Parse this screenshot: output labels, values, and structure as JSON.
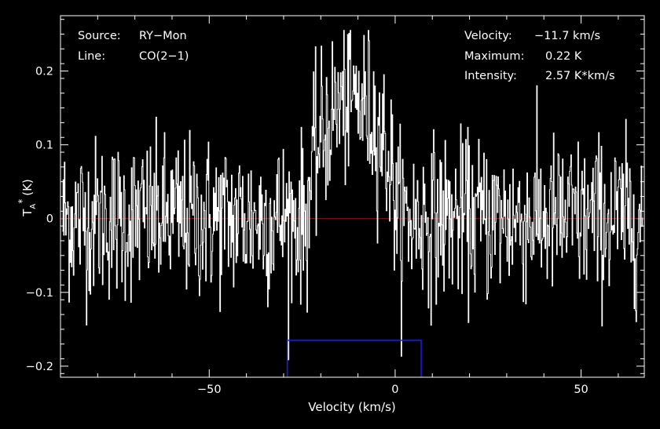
{
  "chart_data": {
    "type": "line",
    "xlabel": "Velocity (km/s)",
    "ylabel": "T",
    "ylabel_sub": "A",
    "ylabel_sup": "*",
    "ylabel_unit": "(K)",
    "xlim": [
      -90,
      67
    ],
    "ylim": [
      -0.215,
      0.275
    ],
    "x_ticks": [
      -50,
      0,
      50
    ],
    "x_tick_labels": [
      "−50",
      "0",
      "50"
    ],
    "y_ticks": [
      -0.2,
      -0.1,
      0,
      0.1,
      0.2
    ],
    "y_tick_labels": [
      "−0.2",
      "−0.1",
      "0",
      "0.1",
      "0.2"
    ],
    "baseline": 0,
    "window": {
      "x_start": -29,
      "x_end": 7,
      "y_top": -0.165
    },
    "spectrum": {
      "x_start": -89.5,
      "x_end": 66.5,
      "channels": 900,
      "noise_rms": 0.055,
      "line_center": -11.7,
      "line_peak": 0.16,
      "line_halfwidth": 12
    },
    "colors": {
      "spectrum": "#ffffff",
      "baseline": "#cc0000",
      "window": "#1a1aff",
      "axes": "#ffffff"
    },
    "grid": false
  },
  "info": {
    "source_label": "Source:",
    "source_value": "RY−Mon",
    "line_label": "Line:",
    "line_value": "CO(2−1)",
    "velocity_label": "Velocity:",
    "velocity_value": "−11.7 km/s",
    "maximum_label": "Maximum:",
    "maximum_value": "0.22 K",
    "intensity_label": "Intensity:",
    "intensity_value": "2.57 K*km/s"
  }
}
